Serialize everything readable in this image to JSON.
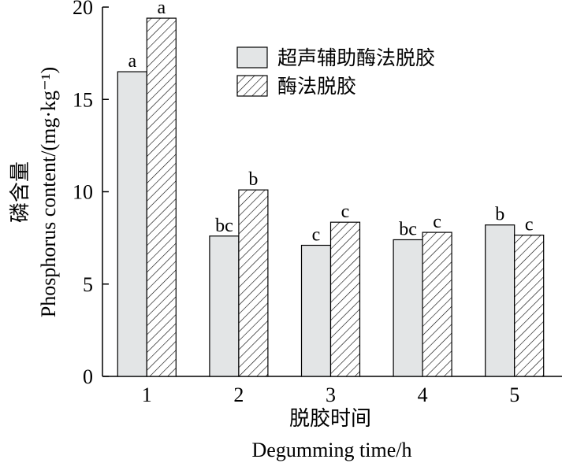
{
  "chart_data": {
    "type": "bar",
    "categories": [
      "1",
      "2",
      "3",
      "4",
      "5"
    ],
    "series": [
      {
        "name": "超声辅助酶法脱胶",
        "fill": "solid",
        "values": [
          16.5,
          7.6,
          7.1,
          7.4,
          8.2
        ],
        "labels": [
          "a",
          "bc",
          "c",
          "bc",
          "b"
        ]
      },
      {
        "name": "酶法脱胶",
        "fill": "hatch",
        "values": [
          19.4,
          10.1,
          8.35,
          7.8,
          7.65
        ],
        "labels": [
          "a",
          "b",
          "c",
          "c",
          "c"
        ]
      }
    ],
    "ylim": [
      0,
      20
    ],
    "yticks": [
      0,
      5,
      10,
      15,
      20
    ],
    "xlabel_cn": "脱胶时间",
    "xlabel_en": "Degumming time/h",
    "ylabel_cn": "磷含量",
    "ylabel_en": "Phosphorus content/(mg·kg⁻¹)",
    "legend_position": "top-right",
    "colors": {
      "solid_fill": "#e3e5e6",
      "stroke": "#000000",
      "hatch": "#000000"
    }
  }
}
